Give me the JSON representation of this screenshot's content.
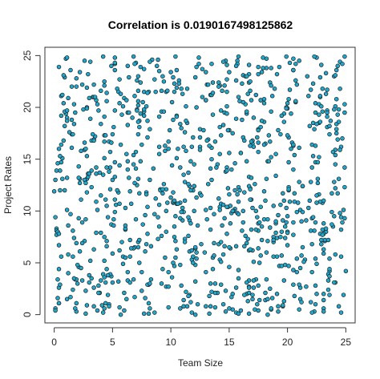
{
  "chart_data": {
    "type": "scatter",
    "title": "Correlation is  0.0190167498125862",
    "xlabel": "Team Size",
    "ylabel": "Project Rates",
    "xlim": [
      -0.8,
      25.8
    ],
    "ylim": [
      -0.8,
      25.8
    ],
    "xticks": [
      0,
      5,
      10,
      15,
      20,
      25
    ],
    "yticks": [
      0,
      5,
      10,
      15,
      20,
      25
    ],
    "grid": false,
    "legend": "none",
    "point_fill": "#1fa8cc",
    "point_stroke": "#1a1a1a",
    "point_count": 1000,
    "points": [
      [
        0.1,
        0.6
      ],
      [
        0.4,
        1.1
      ],
      [
        0.2,
        8.3
      ],
      [
        0.5,
        12.0
      ],
      [
        0.3,
        14.6
      ],
      [
        0.6,
        19.2
      ],
      [
        0.8,
        20.4
      ],
      [
        0.4,
        23.9
      ],
      [
        1.0,
        24.7
      ],
      [
        1.2,
        20.9
      ],
      [
        1.5,
        17.4
      ],
      [
        1.1,
        13.2
      ],
      [
        1.4,
        9.7
      ],
      [
        1.2,
        5.8
      ],
      [
        1.6,
        2.4
      ],
      [
        1.9,
        0.3
      ],
      [
        2.1,
        4.6
      ],
      [
        2.4,
        8.9
      ],
      [
        2.2,
        12.7
      ],
      [
        2.6,
        15.9
      ],
      [
        2.5,
        19.8
      ],
      [
        2.9,
        23.2
      ],
      [
        3.1,
        24.4
      ],
      [
        3.3,
        21.0
      ],
      [
        3.5,
        17.2
      ],
      [
        3.2,
        13.9
      ],
      [
        3.7,
        10.1
      ],
      [
        3.4,
        6.3
      ],
      [
        3.8,
        2.8
      ],
      [
        4.1,
        0.9
      ],
      [
        4.3,
        5.2
      ],
      [
        4.6,
        9.4
      ],
      [
        4.2,
        13.5
      ],
      [
        4.7,
        16.7
      ],
      [
        4.5,
        20.6
      ],
      [
        4.9,
        24.0
      ],
      [
        5.2,
        24.8
      ],
      [
        5.4,
        21.8
      ],
      [
        5.1,
        18.1
      ],
      [
        5.6,
        14.4
      ],
      [
        5.3,
        10.6
      ],
      [
        5.8,
        7.0
      ],
      [
        5.5,
        3.2
      ],
      [
        6.0,
        0.4
      ],
      [
        6.3,
        4.1
      ],
      [
        6.1,
        8.2
      ],
      [
        6.5,
        11.9
      ],
      [
        6.2,
        15.5
      ],
      [
        6.7,
        19.0
      ],
      [
        6.4,
        22.9
      ],
      [
        7.0,
        24.3
      ],
      [
        7.2,
        20.2
      ],
      [
        7.5,
        16.4
      ],
      [
        7.1,
        12.5
      ],
      [
        7.6,
        8.7
      ],
      [
        7.3,
        5.0
      ],
      [
        7.8,
        1.6
      ],
      [
        8.1,
        2.9
      ],
      [
        8.3,
        6.6
      ],
      [
        8.0,
        10.4
      ],
      [
        8.5,
        14.1
      ],
      [
        8.2,
        17.9
      ],
      [
        8.7,
        21.5
      ],
      [
        8.4,
        24.6
      ],
      [
        9.0,
        23.5
      ],
      [
        9.2,
        19.6
      ],
      [
        9.5,
        15.8
      ],
      [
        9.1,
        12.1
      ],
      [
        9.6,
        8.0
      ],
      [
        9.3,
        4.4
      ],
      [
        9.8,
        0.7
      ],
      [
        10.1,
        3.6
      ],
      [
        10.3,
        7.5
      ],
      [
        10.0,
        11.3
      ],
      [
        10.5,
        15.1
      ],
      [
        10.2,
        18.8
      ],
      [
        10.7,
        22.6
      ],
      [
        10.4,
        24.9
      ],
      [
        11.0,
        21.3
      ],
      [
        11.2,
        17.6
      ],
      [
        11.5,
        13.7
      ],
      [
        11.1,
        9.9
      ],
      [
        11.6,
        6.1
      ],
      [
        11.3,
        2.2
      ],
      [
        11.8,
        0.2
      ],
      [
        12.1,
        4.8
      ],
      [
        12.3,
        8.6
      ],
      [
        12.0,
        12.4
      ],
      [
        12.5,
        16.2
      ],
      [
        12.2,
        20.0
      ],
      [
        12.7,
        23.7
      ],
      [
        12.4,
        24.2
      ],
      [
        13.0,
        20.7
      ],
      [
        13.2,
        16.9
      ],
      [
        13.5,
        13.0
      ],
      [
        13.1,
        9.2
      ],
      [
        13.6,
        5.5
      ],
      [
        13.3,
        1.8
      ],
      [
        13.8,
        3.0
      ],
      [
        14.1,
        6.8
      ],
      [
        14.3,
        10.7
      ],
      [
        14.0,
        14.5
      ],
      [
        14.5,
        18.3
      ],
      [
        14.2,
        22.1
      ],
      [
        14.7,
        24.5
      ],
      [
        14.4,
        21.6
      ],
      [
        15.0,
        17.8
      ],
      [
        15.2,
        14.0
      ],
      [
        15.5,
        10.2
      ],
      [
        15.1,
        6.4
      ],
      [
        15.6,
        2.6
      ],
      [
        15.3,
        0.5
      ],
      [
        15.8,
        4.3
      ],
      [
        16.1,
        8.1
      ],
      [
        16.3,
        11.8
      ],
      [
        16.0,
        15.6
      ],
      [
        16.5,
        19.4
      ],
      [
        16.2,
        23.1
      ],
      [
        16.7,
        24.1
      ],
      [
        16.4,
        20.3
      ],
      [
        17.0,
        16.5
      ],
      [
        17.2,
        12.6
      ],
      [
        17.5,
        8.8
      ],
      [
        17.1,
        5.1
      ],
      [
        17.6,
        1.4
      ],
      [
        17.3,
        3.4
      ],
      [
        17.8,
        7.2
      ],
      [
        18.1,
        11.0
      ],
      [
        18.3,
        14.8
      ],
      [
        18.0,
        18.6
      ],
      [
        18.5,
        22.4
      ],
      [
        18.2,
        24.7
      ],
      [
        18.7,
        21.1
      ],
      [
        18.4,
        17.3
      ],
      [
        19.0,
        13.4
      ],
      [
        19.2,
        9.6
      ],
      [
        19.5,
        5.7
      ],
      [
        19.1,
        2.0
      ],
      [
        19.6,
        0.8
      ],
      [
        19.3,
        4.7
      ],
      [
        19.8,
        8.5
      ],
      [
        20.1,
        12.3
      ],
      [
        20.3,
        16.0
      ],
      [
        20.0,
        19.9
      ],
      [
        20.5,
        23.6
      ],
      [
        20.2,
        24.3
      ],
      [
        20.7,
        20.5
      ],
      [
        20.4,
        16.6
      ],
      [
        21.0,
        12.8
      ],
      [
        21.2,
        9.0
      ],
      [
        21.5,
        5.3
      ],
      [
        21.1,
        1.5
      ],
      [
        21.6,
        2.7
      ],
      [
        21.3,
        6.5
      ],
      [
        21.8,
        10.3
      ],
      [
        22.1,
        14.2
      ],
      [
        22.3,
        17.9
      ],
      [
        22.0,
        21.7
      ],
      [
        22.5,
        24.8
      ],
      [
        22.2,
        22.3
      ],
      [
        22.7,
        18.5
      ],
      [
        22.4,
        14.7
      ],
      [
        23.0,
        10.8
      ],
      [
        23.2,
        7.1
      ],
      [
        23.5,
        3.3
      ],
      [
        23.1,
        0.6
      ],
      [
        23.6,
        4.2
      ],
      [
        23.3,
        8.0
      ],
      [
        23.8,
        11.7
      ],
      [
        24.1,
        15.4
      ],
      [
        24.3,
        19.3
      ],
      [
        24.0,
        23.0
      ],
      [
        24.5,
        24.4
      ],
      [
        24.2,
        20.8
      ],
      [
        24.7,
        17.0
      ],
      [
        24.4,
        13.1
      ],
      [
        24.9,
        9.3
      ],
      [
        24.6,
        5.6
      ],
      [
        24.8,
        1.9
      ],
      [
        24.9,
        24.9
      ]
    ]
  }
}
